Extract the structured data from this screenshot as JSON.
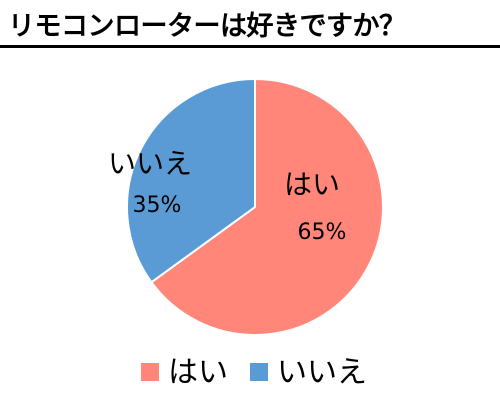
{
  "chart_data": {
    "type": "pie",
    "title": "リモコンローターは好きですか？",
    "slices": [
      {
        "label": "はい",
        "value": 65,
        "value_label": "65%",
        "color": "#FF8679"
      },
      {
        "label": "いいえ",
        "value": 35,
        "value_label": "35%",
        "color": "#5B9BD5"
      }
    ],
    "start_angle": "12 o'clock",
    "direction": "clockwise",
    "legend": {
      "position": "bottom",
      "entries": [
        "はい",
        "いいえ"
      ]
    }
  }
}
